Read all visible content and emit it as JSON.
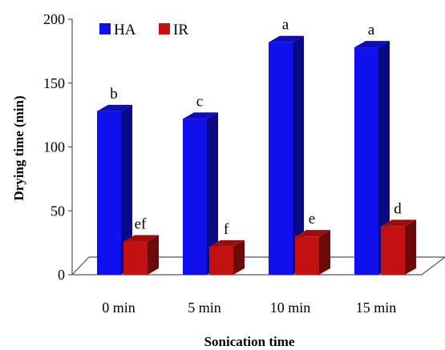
{
  "chart_data": {
    "type": "bar",
    "title": "",
    "xlabel": "Sonication time",
    "ylabel": "Drying time (min)",
    "categories": [
      "0 min",
      "5 min",
      "10 min",
      "15 min"
    ],
    "ylim": [
      0,
      200
    ],
    "yticks": [
      "0",
      "50",
      "100",
      "150",
      "200"
    ],
    "grid": false,
    "legend_position": "top-left",
    "style": "3d-column",
    "series": [
      {
        "name": "HA",
        "color": "#1010ee",
        "values": [
          128,
          122,
          182,
          178
        ],
        "labels": [
          "b",
          "c",
          "a",
          "a"
        ]
      },
      {
        "name": "IR",
        "color": "#c41010",
        "values": [
          26,
          22,
          30,
          38
        ],
        "labels": [
          "ef",
          "f",
          "e",
          "d"
        ]
      }
    ]
  }
}
